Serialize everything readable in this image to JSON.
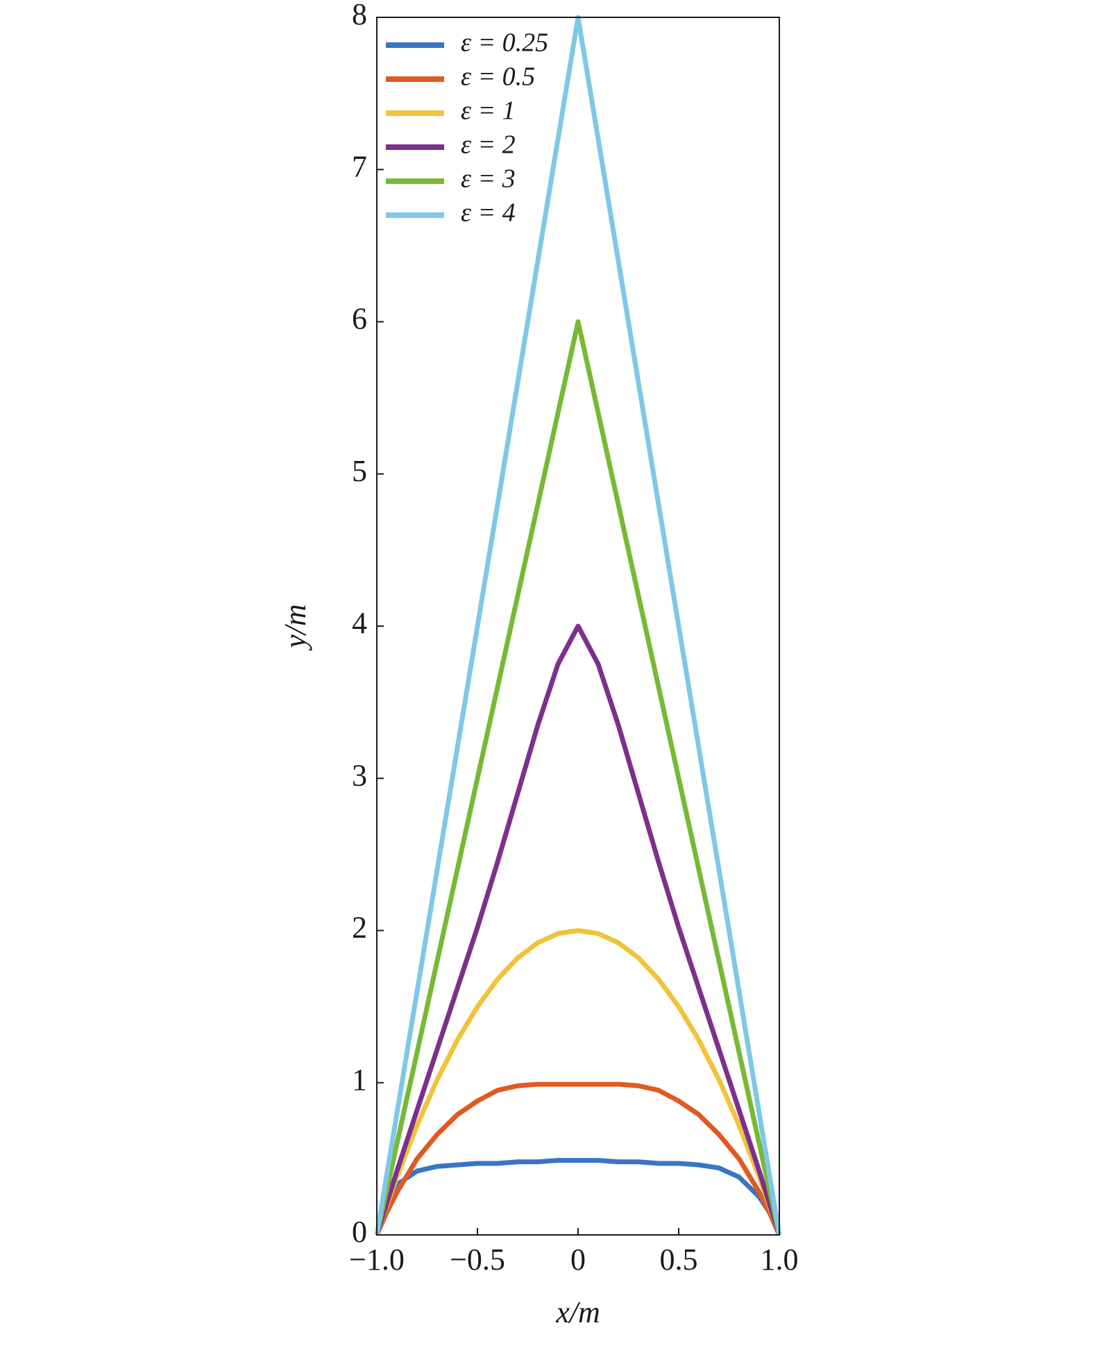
{
  "chart_data": {
    "type": "line",
    "xlabel": "x/m",
    "ylabel": "y/m",
    "x": [
      -1,
      -0.95,
      -0.9,
      -0.8,
      -0.7,
      -0.6,
      -0.5,
      -0.4,
      -0.3,
      -0.2,
      -0.1,
      0,
      0.1,
      0.2,
      0.3,
      0.4,
      0.5,
      0.6,
      0.7,
      0.8,
      0.9,
      0.95,
      1
    ],
    "series": [
      {
        "name": "ε = 0.25",
        "color": "#3a75c4",
        "values": [
          0,
          0.22,
          0.33,
          0.42,
          0.45,
          0.46,
          0.47,
          0.47,
          0.48,
          0.48,
          0.49,
          0.49,
          0.49,
          0.48,
          0.48,
          0.47,
          0.47,
          0.46,
          0.44,
          0.38,
          0.25,
          0.15,
          0
        ]
      },
      {
        "name": "ε = 0.5",
        "color": "#e05a23",
        "values": [
          0,
          0.15,
          0.28,
          0.5,
          0.66,
          0.79,
          0.88,
          0.95,
          0.98,
          0.99,
          0.99,
          0.99,
          0.99,
          0.99,
          0.98,
          0.95,
          0.88,
          0.79,
          0.66,
          0.5,
          0.28,
          0.15,
          0
        ]
      },
      {
        "name": "ε = 1",
        "color": "#f0c43a",
        "values": [
          0,
          0.195,
          0.38,
          0.72,
          1.02,
          1.28,
          1.5,
          1.68,
          1.82,
          1.92,
          1.98,
          2,
          1.98,
          1.92,
          1.82,
          1.68,
          1.5,
          1.28,
          1.02,
          0.72,
          0.38,
          0.195,
          0
        ]
      },
      {
        "name": "ε = 2",
        "color": "#7e2f8e",
        "values": [
          0,
          0.21,
          0.42,
          0.82,
          1.22,
          1.62,
          2.02,
          2.45,
          2.9,
          3.35,
          3.75,
          4,
          3.75,
          3.35,
          2.9,
          2.45,
          2.02,
          1.62,
          1.22,
          0.82,
          0.42,
          0.21,
          0
        ]
      },
      {
        "name": "ε = 3",
        "color": "#77b934",
        "values": [
          0,
          0.3,
          0.6,
          1.2,
          1.8,
          2.4,
          3,
          3.6,
          4.2,
          4.8,
          5.4,
          6,
          5.4,
          4.8,
          4.2,
          3.6,
          3,
          2.4,
          1.8,
          1.2,
          0.6,
          0.3,
          0
        ]
      },
      {
        "name": "ε = 4",
        "color": "#7fc8e6",
        "values": [
          0,
          0.4,
          0.8,
          1.6,
          2.4,
          3.2,
          4,
          4.8,
          5.6,
          6.4,
          7.2,
          8,
          7.2,
          6.4,
          5.6,
          4.8,
          4,
          3.2,
          2.4,
          1.6,
          0.8,
          0.4,
          0
        ]
      }
    ],
    "xlim": [
      -1,
      1
    ],
    "xticks": [
      {
        "value": -1,
        "label": "−1.0"
      },
      {
        "value": -0.5,
        "label": "−0.5"
      },
      0,
      0.5,
      {
        "value": 1,
        "label": "1.0"
      }
    ],
    "ylim": [
      0,
      8
    ],
    "yticks": [
      0,
      1,
      2,
      3,
      4,
      5,
      6,
      7,
      8
    ],
    "legend": "upper left"
  }
}
